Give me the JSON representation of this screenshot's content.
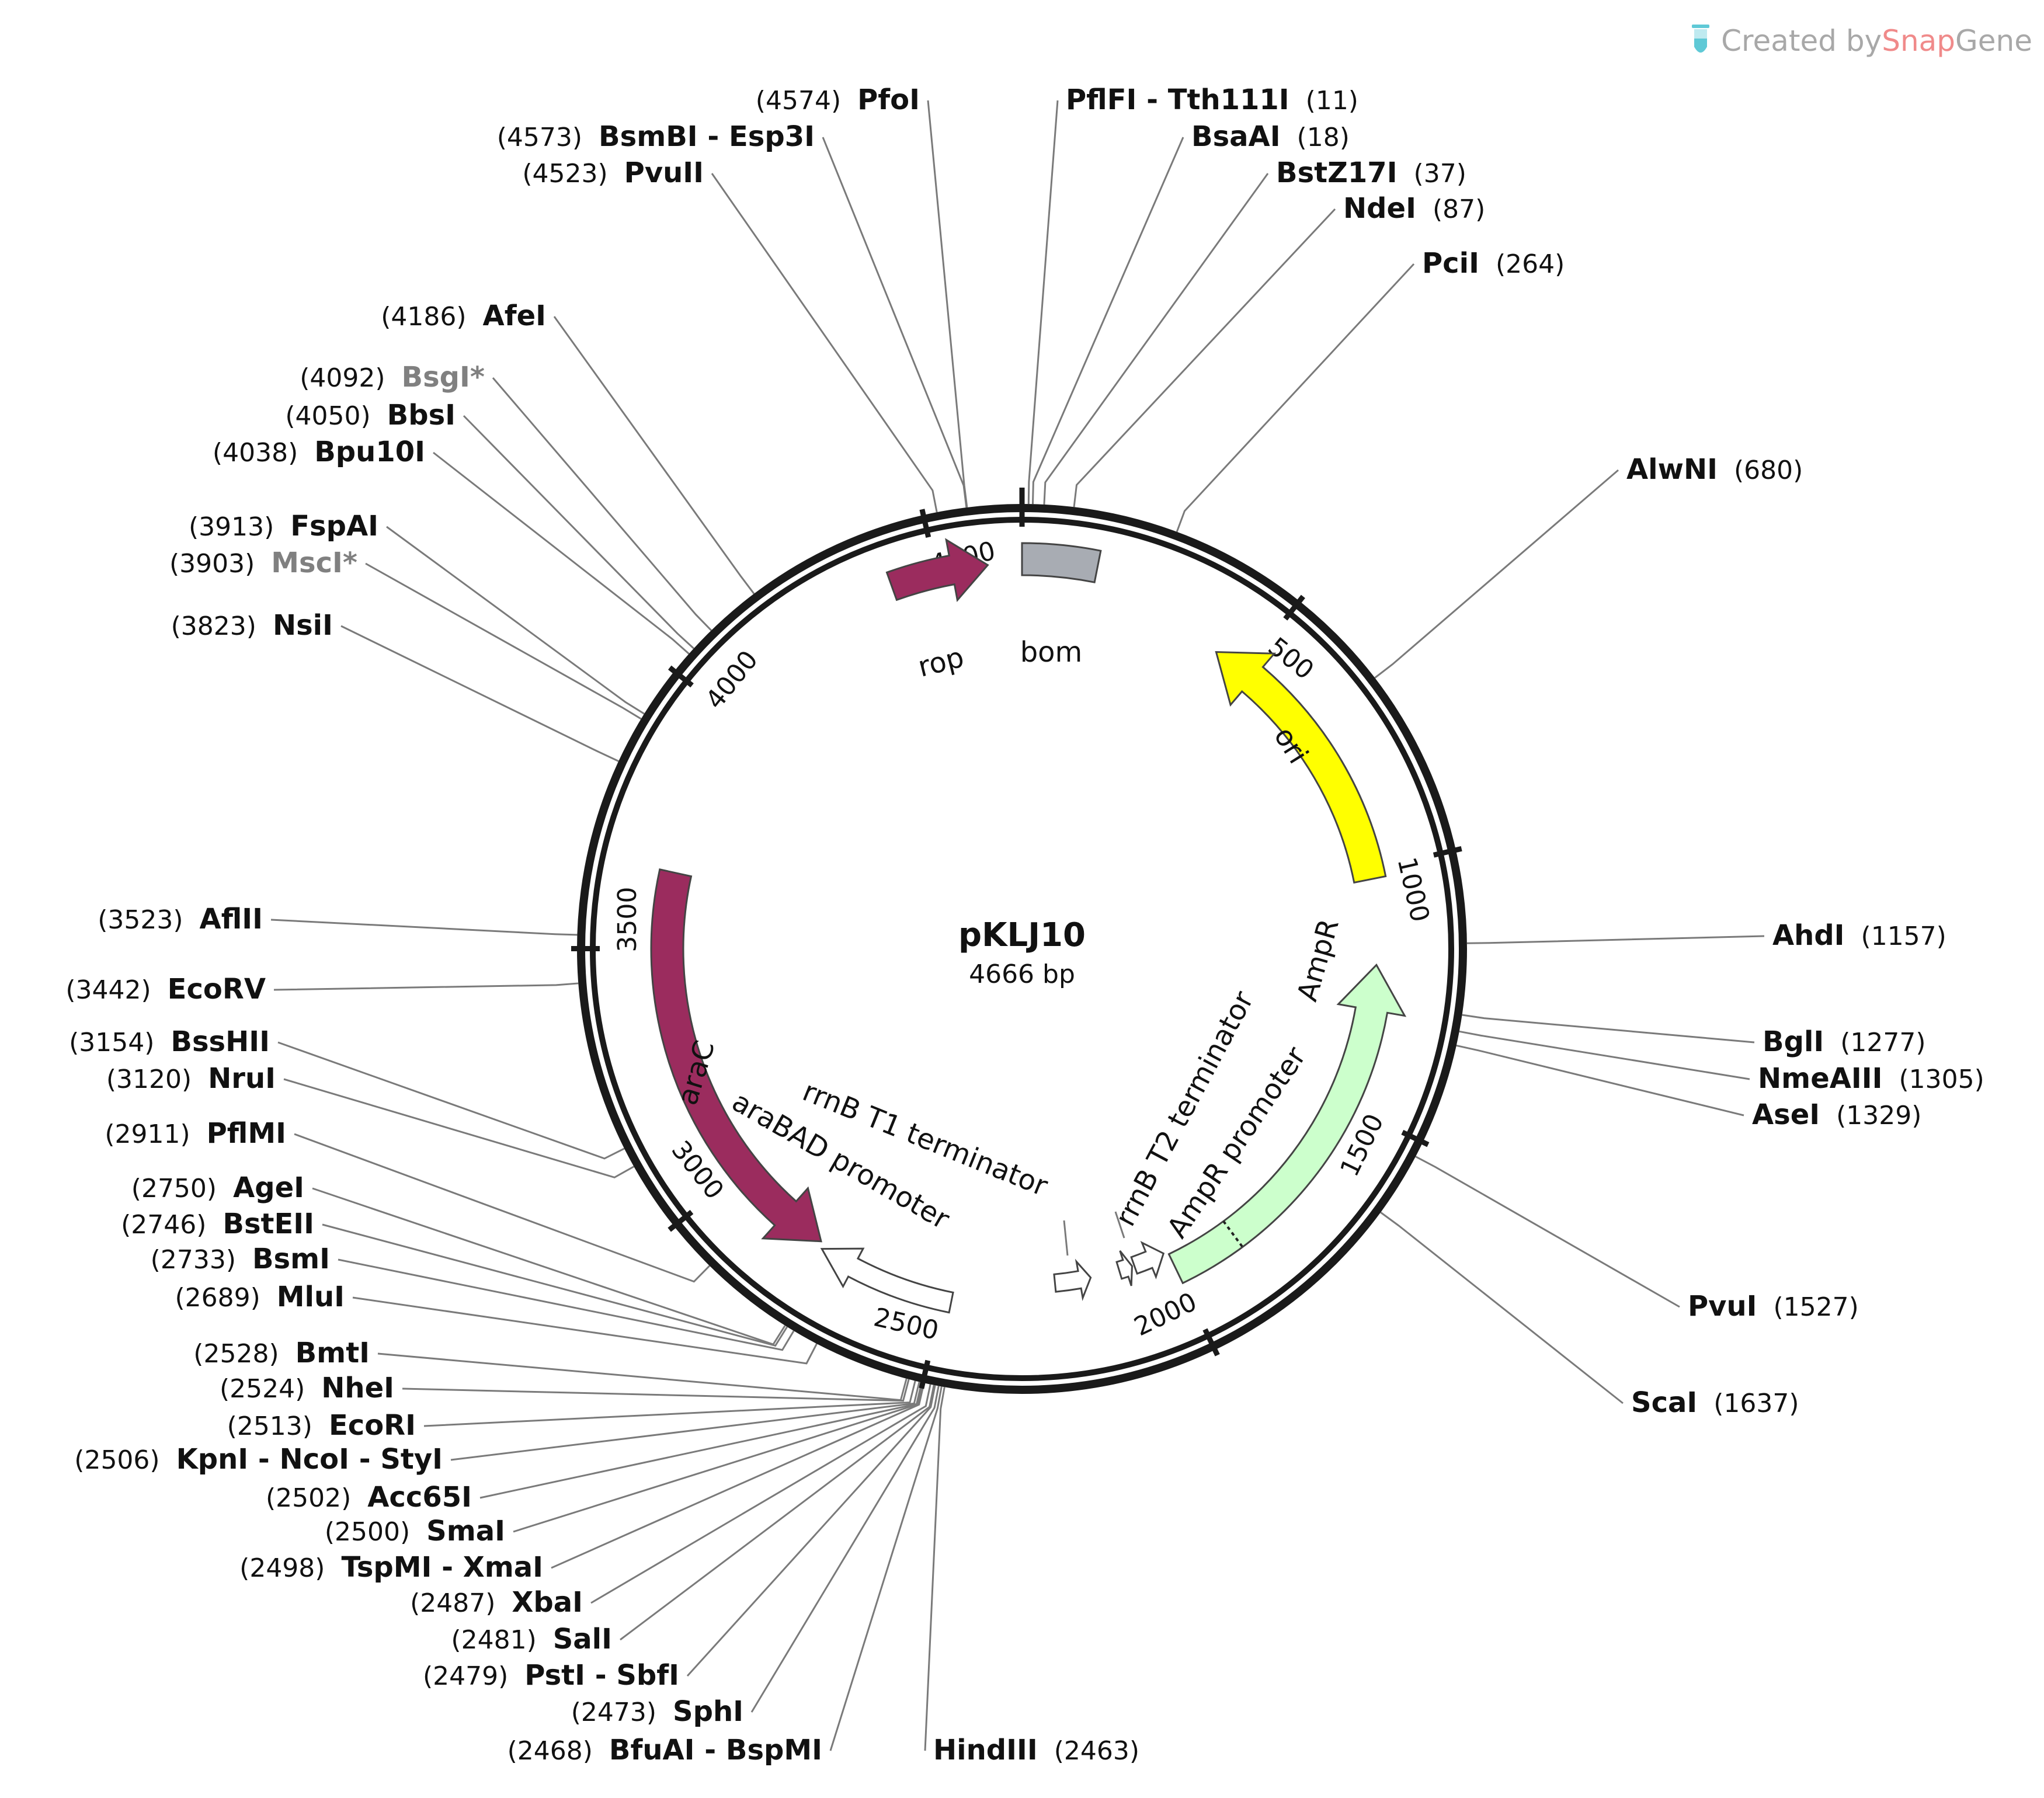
{
  "plasmid": {
    "name": "pKLJ10",
    "length_label": "4666 bp",
    "length": 4666
  },
  "branding": {
    "created_by": "Created by ",
    "snap": "Snap",
    "gene": "Gene",
    "icon": "test-tube-icon"
  },
  "colors": {
    "backbone": "#1a1a1a",
    "araC": "#9b2c5e",
    "rop": "#9b2c5e",
    "ori": "#ffff00",
    "AmpR": "#ccffcc",
    "bom": "#a8acb3",
    "promoter": "#ffffff",
    "leader": "#7a7a7a",
    "nonunique_site": "#808080"
  },
  "ticks": [
    "500",
    "1000",
    "1500",
    "2000",
    "2500",
    "3000",
    "3500",
    "4000",
    "4500"
  ],
  "features": [
    {
      "id": "rop",
      "label": "rop",
      "start": 4410,
      "end": 4600,
      "direction": "forward",
      "type": "cds"
    },
    {
      "id": "bom",
      "label": "bom",
      "start": 0,
      "end": 145,
      "direction": "none",
      "type": "misc"
    },
    {
      "id": "ori",
      "label": "ori",
      "start": 430,
      "end": 1020,
      "direction": "reverse",
      "type": "rep_origin"
    },
    {
      "id": "AmpR",
      "label": "AmpR",
      "start": 1200,
      "end": 2000,
      "direction": "reverse",
      "type": "cds"
    },
    {
      "id": "AmpR_promoter",
      "label": "AmpR promoter",
      "start": 2010,
      "end": 2080,
      "direction": "reverse",
      "type": "promoter"
    },
    {
      "id": "rrnB_T2",
      "label": "rrnB T2 terminator",
      "start": 2085,
      "end": 2115,
      "direction": "reverse",
      "type": "terminator"
    },
    {
      "id": "rrnB_T1",
      "label": "rrnB T1 terminator",
      "start": 2180,
      "end": 2260,
      "direction": "reverse",
      "type": "terminator"
    },
    {
      "id": "araBAD",
      "label": "araBAD promoter",
      "start": 2480,
      "end": 2770,
      "direction": "forward",
      "type": "promoter"
    },
    {
      "id": "araC",
      "label": "araC",
      "start": 2780,
      "end": 3660,
      "direction": "reverse",
      "type": "cds"
    }
  ],
  "sites": [
    {
      "key": "pfoi",
      "pos": "(4574)",
      "names": [
        "PfoI"
      ],
      "side": "left",
      "nonunique": false
    },
    {
      "key": "bsmbi",
      "pos": "(4573)",
      "names": [
        "BsmBI",
        "Esp3I"
      ],
      "side": "left",
      "nonunique": false
    },
    {
      "key": "pvuii",
      "pos": "(4523)",
      "names": [
        "PvuII"
      ],
      "side": "left",
      "nonunique": false
    },
    {
      "key": "afei",
      "pos": "(4186)",
      "names": [
        "AfeI"
      ],
      "side": "left",
      "nonunique": false
    },
    {
      "key": "bsgi",
      "pos": "(4092)",
      "names": [
        "BsgI*"
      ],
      "side": "left",
      "nonunique": true
    },
    {
      "key": "bbsi",
      "pos": "(4050)",
      "names": [
        "BbsI"
      ],
      "side": "left",
      "nonunique": false
    },
    {
      "key": "bpu10i",
      "pos": "(4038)",
      "names": [
        "Bpu10I"
      ],
      "side": "left",
      "nonunique": false
    },
    {
      "key": "fspai",
      "pos": "(3913)",
      "names": [
        "FspAI"
      ],
      "side": "left",
      "nonunique": false
    },
    {
      "key": "msci",
      "pos": "(3903)",
      "names": [
        "MscI*"
      ],
      "side": "left",
      "nonunique": true
    },
    {
      "key": "nsii",
      "pos": "(3823)",
      "names": [
        "NsiI"
      ],
      "side": "left",
      "nonunique": false
    },
    {
      "key": "aflii",
      "pos": "(3523)",
      "names": [
        "AflII"
      ],
      "side": "left",
      "nonunique": false
    },
    {
      "key": "ecorv",
      "pos": "(3442)",
      "names": [
        "EcoRV"
      ],
      "side": "left",
      "nonunique": false
    },
    {
      "key": "bsshii",
      "pos": "(3154)",
      "names": [
        "BssHII"
      ],
      "side": "left",
      "nonunique": false
    },
    {
      "key": "nrui",
      "pos": "(3120)",
      "names": [
        "NruI"
      ],
      "side": "left",
      "nonunique": false
    },
    {
      "key": "pflmi",
      "pos": "(2911)",
      "names": [
        "PflMI"
      ],
      "side": "left",
      "nonunique": false
    },
    {
      "key": "agei",
      "pos": "(2750)",
      "names": [
        "AgeI"
      ],
      "side": "left",
      "nonunique": false
    },
    {
      "key": "bsteii",
      "pos": "(2746)",
      "names": [
        "BstEII"
      ],
      "side": "left",
      "nonunique": false
    },
    {
      "key": "bsmi",
      "pos": "(2733)",
      "names": [
        "BsmI"
      ],
      "side": "left",
      "nonunique": false
    },
    {
      "key": "mlui",
      "pos": "(2689)",
      "names": [
        "MluI"
      ],
      "side": "left",
      "nonunique": false
    },
    {
      "key": "bmti",
      "pos": "(2528)",
      "names": [
        "BmtI"
      ],
      "side": "left",
      "nonunique": false
    },
    {
      "key": "nhei",
      "pos": "(2524)",
      "names": [
        "NheI"
      ],
      "side": "left",
      "nonunique": false
    },
    {
      "key": "ecori",
      "pos": "(2513)",
      "names": [
        "EcoRI"
      ],
      "side": "left",
      "nonunique": false
    },
    {
      "key": "kpni",
      "pos": "(2506)",
      "names": [
        "KpnI",
        "NcoI",
        "StyI"
      ],
      "side": "left",
      "nonunique": false
    },
    {
      "key": "acc65i",
      "pos": "(2502)",
      "names": [
        "Acc65I"
      ],
      "side": "left",
      "nonunique": false
    },
    {
      "key": "smai",
      "pos": "(2500)",
      "names": [
        "SmaI"
      ],
      "side": "left",
      "nonunique": false
    },
    {
      "key": "tspmi",
      "pos": "(2498)",
      "names": [
        "TspMI",
        "XmaI"
      ],
      "side": "left",
      "nonunique": false
    },
    {
      "key": "xbai",
      "pos": "(2487)",
      "names": [
        "XbaI"
      ],
      "side": "left",
      "nonunique": false
    },
    {
      "key": "sali",
      "pos": "(2481)",
      "names": [
        "SalI"
      ],
      "side": "left",
      "nonunique": false
    },
    {
      "key": "psti",
      "pos": "(2479)",
      "names": [
        "PstI",
        "SbfI"
      ],
      "side": "left",
      "nonunique": false
    },
    {
      "key": "sphi",
      "pos": "(2473)",
      "names": [
        "SphI"
      ],
      "side": "left",
      "nonunique": false
    },
    {
      "key": "bfuai",
      "pos": "(2468)",
      "names": [
        "BfuAI",
        "BspMI"
      ],
      "side": "left",
      "nonunique": false
    },
    {
      "key": "hindiii",
      "pos": "(2463)",
      "names": [
        "HindIII"
      ],
      "side": "right",
      "nonunique": false
    },
    {
      "key": "pflfi",
      "pos": "(11)",
      "names": [
        "PflFI",
        "Tth111I"
      ],
      "side": "right",
      "nonunique": false
    },
    {
      "key": "bsaai",
      "pos": "(18)",
      "names": [
        "BsaAI"
      ],
      "side": "right",
      "nonunique": false
    },
    {
      "key": "bstz17i",
      "pos": "(37)",
      "names": [
        "BstZ17I"
      ],
      "side": "right",
      "nonunique": false
    },
    {
      "key": "ndei",
      "pos": "(87)",
      "names": [
        "NdeI"
      ],
      "side": "right",
      "nonunique": false
    },
    {
      "key": "pcii",
      "pos": "(264)",
      "names": [
        "PciI"
      ],
      "side": "right",
      "nonunique": false
    },
    {
      "key": "alwni",
      "pos": "(680)",
      "names": [
        "AlwNI"
      ],
      "side": "right",
      "nonunique": false
    },
    {
      "key": "ahdi",
      "pos": "(1157)",
      "names": [
        "AhdI"
      ],
      "side": "right",
      "nonunique": false
    },
    {
      "key": "bgli",
      "pos": "(1277)",
      "names": [
        "BglI"
      ],
      "side": "right",
      "nonunique": false
    },
    {
      "key": "nmeaiii",
      "pos": "(1305)",
      "names": [
        "NmeAIII"
      ],
      "side": "right",
      "nonunique": false
    },
    {
      "key": "asei",
      "pos": "(1329)",
      "names": [
        "AseI"
      ],
      "side": "right",
      "nonunique": false
    },
    {
      "key": "pvui",
      "pos": "(1527)",
      "names": [
        "PvuI"
      ],
      "side": "right",
      "nonunique": false
    },
    {
      "key": "scai",
      "pos": "(1637)",
      "names": [
        "ScaI"
      ],
      "side": "right",
      "nonunique": false
    }
  ]
}
